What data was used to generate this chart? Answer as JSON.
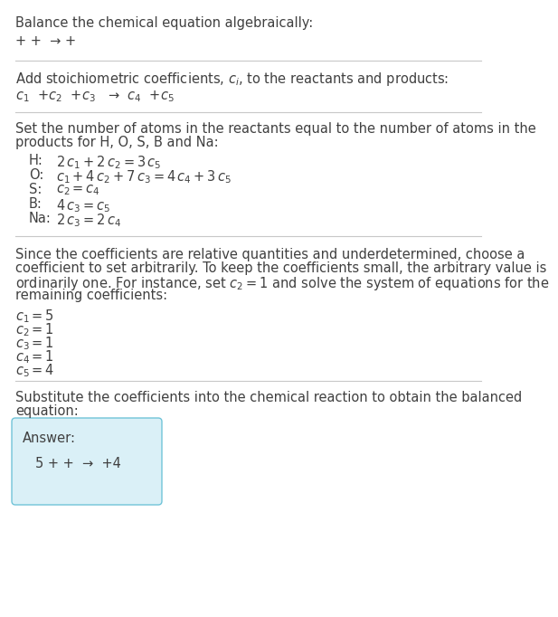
{
  "title": "Balance the chemical equation algebraically:",
  "line1": "+ +  → +",
  "section1_header": "Add stoichiometric coefficients, $c_i$, to the reactants and products:",
  "section1_eq": "$c_1$  +$c_2$  +$c_3$   →  $c_4$  +$c_5$",
  "section2_header_line1": "Set the number of atoms in the reactants equal to the number of atoms in the",
  "section2_header_line2": "products for H, O, S, B and Na:",
  "eq_labels": [
    "H:",
    "O:",
    "S:",
    "B:",
    "Na:"
  ],
  "eq_math": [
    "$2\\,c_1 + 2\\,c_2 = 3\\,c_5$",
    "$c_1 + 4\\,c_2 + 7\\,c_3 = 4\\,c_4 + 3\\,c_5$",
    "$c_2 = c_4$",
    "$4\\,c_3 = c_5$",
    "$2\\,c_3 = 2\\,c_4$"
  ],
  "section3_lines": [
    "Since the coefficients are relative quantities and underdetermined, choose a",
    "coefficient to set arbitrarily. To keep the coefficients small, the arbitrary value is",
    "ordinarily one. For instance, set $c_2 = 1$ and solve the system of equations for the",
    "remaining coefficients:"
  ],
  "coeff_lines": [
    "$c_1 = 5$",
    "$c_2 = 1$",
    "$c_3 = 1$",
    "$c_4 = 1$",
    "$c_5 = 4$"
  ],
  "section4_line1": "Substitute the coefficients into the chemical reaction to obtain the balanced",
  "section4_line2": "equation:",
  "answer_label": "Answer:",
  "answer_eq": "5 + +  →  +4",
  "bg_color": "#ffffff",
  "text_color": "#404040",
  "answer_box_facecolor": "#daf0f7",
  "answer_box_edgecolor": "#71c4d8",
  "sep_color": "#c8c8c8"
}
